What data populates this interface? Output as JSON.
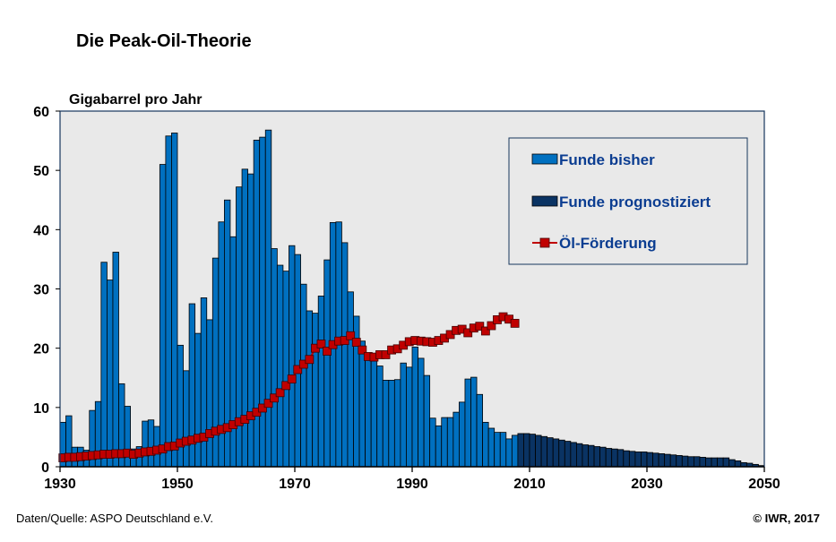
{
  "chart_data": {
    "type": "bar",
    "title": "Die Peak-Oil-Theorie",
    "ylabel": "Gigabarrel pro Jahr",
    "xlabel": "",
    "ylim": [
      0,
      60
    ],
    "xlim": [
      1930,
      2050
    ],
    "yticks": [
      "0",
      "10",
      "20",
      "30",
      "40",
      "50",
      "60"
    ],
    "xticks": [
      "1930",
      "1950",
      "1970",
      "1990",
      "2010",
      "2030",
      "2050"
    ],
    "grid": false,
    "legend_position": "top-right",
    "source": "Daten/Quelle: ASPO Deutschland e.V.",
    "copyright": "© IWR, 2017",
    "colors": {
      "funde_bisher": "#0070c0",
      "funde_prognose": "#0a3363",
      "oel": "#c00000",
      "plot_bg": "#e9e9e9",
      "frame": "#17365d"
    },
    "series": [
      {
        "name": "Funde bisher",
        "type": "bar",
        "start_year": 1930,
        "values": [
          7.5,
          8.6,
          3.3,
          3.3,
          2.8,
          9.5,
          11,
          34.5,
          31.5,
          36.2,
          14,
          10.2,
          3,
          3.4,
          7.7,
          7.9,
          6.8,
          51,
          55.8,
          56.3,
          20.5,
          16.2,
          27.5,
          22.5,
          28.5,
          24.8,
          35.2,
          41.3,
          45,
          38.8,
          47.2,
          50.2,
          49.4,
          55.1,
          55.6,
          56.8,
          36.8,
          34,
          33,
          37.3,
          35.8,
          30.8,
          26.3,
          25.9,
          28.8,
          34.9,
          41.2,
          41.3,
          37.8,
          29.5,
          25.4,
          21.2,
          18.7,
          18.5,
          17,
          14.6,
          14.6,
          14.7,
          17.5,
          16.8,
          20.2,
          18.3,
          15.4,
          8.2,
          6.9,
          8.3,
          8.3,
          9.2,
          10.9,
          14.8,
          15.1,
          12.2,
          7.5,
          6.5,
          5.8,
          5.8,
          4.7,
          5.3
        ]
      },
      {
        "name": "Funde prognostiziert",
        "type": "bar",
        "start_year": 2008,
        "values": [
          5.6,
          5.6,
          5.5,
          5.3,
          5.1,
          4.9,
          4.7,
          4.5,
          4.3,
          4.1,
          3.9,
          3.7,
          3.6,
          3.4,
          3.3,
          3.1,
          3.0,
          2.9,
          2.7,
          2.6,
          2.5,
          2.5,
          2.4,
          2.3,
          2.2,
          2.1,
          2.0,
          1.9,
          1.8,
          1.7,
          1.7,
          1.6,
          1.5,
          1.5,
          1.5,
          1.5,
          1.2,
          1.0,
          0.7,
          0.6,
          0.4,
          0.2
        ]
      },
      {
        "name": "Öl-Förderung",
        "type": "line",
        "start_year": 1930,
        "values": [
          1.5,
          1.6,
          1.6,
          1.7,
          1.8,
          1.9,
          2.0,
          2.1,
          2.1,
          2.2,
          2.2,
          2.3,
          2.1,
          2.3,
          2.5,
          2.6,
          2.8,
          3.0,
          3.4,
          3.5,
          4.0,
          4.3,
          4.5,
          4.8,
          5.0,
          5.6,
          6.0,
          6.3,
          6.6,
          7.1,
          7.6,
          8.0,
          8.6,
          9.2,
          9.9,
          10.7,
          11.6,
          12.5,
          13.7,
          14.8,
          16.4,
          17.3,
          18.1,
          20.0,
          20.7,
          19.5,
          20.6,
          21.2,
          21.3,
          22.1,
          21.0,
          19.7,
          18.6,
          18.5,
          18.9,
          18.9,
          19.7,
          19.9,
          20.5,
          21.1,
          21.3,
          21.2,
          21.1,
          21.0,
          21.3,
          21.7,
          22.3,
          23.0,
          23.2,
          22.6,
          23.4,
          23.7,
          22.9,
          23.8,
          24.8,
          25.3,
          24.9,
          24.2
        ]
      }
    ]
  }
}
